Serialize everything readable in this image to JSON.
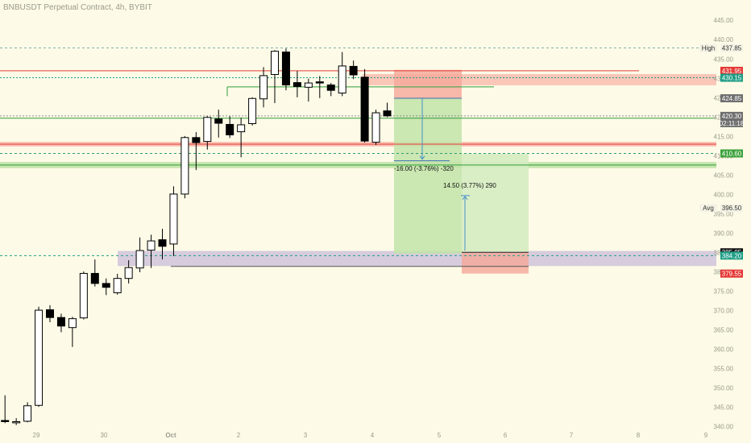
{
  "title": "BNBUSDT Perpetual Contract, 4h, BYBIT",
  "colors": {
    "background": "#fdfbe7",
    "up": "#ffffff",
    "down": "#000000",
    "red": "#e53935",
    "green": "#2e9c3a",
    "red_zone": "#f8b4a8",
    "green_zone": "#c2e3a8",
    "purple_zone": "#d3c6dc",
    "teal": "#1f9e86",
    "blue": "#4a90c8"
  },
  "chart_data": {
    "type": "candlestick",
    "ylim": [
      340,
      446
    ],
    "x_ticks": [
      "29",
      "30",
      "Oct",
      "2",
      "3",
      "4",
      "5",
      "6",
      "7",
      "8",
      "9"
    ],
    "y_ticks": [
      445,
      440,
      435,
      430,
      425,
      420,
      415,
      410,
      405,
      400,
      395,
      390,
      385,
      380,
      375,
      370,
      365,
      360,
      355,
      350,
      345,
      340
    ],
    "candles": [
      {
        "o": 341.6,
        "h": 348.1,
        "l": 340.9,
        "c": 341.3
      },
      {
        "o": 341.0,
        "h": 342.2,
        "l": 340.4,
        "c": 341.3
      },
      {
        "o": 341.4,
        "h": 346.3,
        "l": 341.1,
        "c": 345.4
      },
      {
        "o": 345.5,
        "h": 371.0,
        "l": 345.1,
        "c": 370.1
      },
      {
        "o": 370.2,
        "h": 371.4,
        "l": 367.0,
        "c": 368.2
      },
      {
        "o": 368.2,
        "h": 369.2,
        "l": 364.4,
        "c": 366.0
      },
      {
        "o": 365.6,
        "h": 368.4,
        "l": 360.6,
        "c": 367.9
      },
      {
        "o": 368.1,
        "h": 380.1,
        "l": 367.7,
        "c": 379.6
      },
      {
        "o": 379.6,
        "h": 383.2,
        "l": 376.2,
        "c": 377.0
      },
      {
        "o": 377.0,
        "h": 378.3,
        "l": 374.0,
        "c": 376.0
      },
      {
        "o": 374.6,
        "h": 379.5,
        "l": 374.1,
        "c": 378.3
      },
      {
        "o": 378.3,
        "h": 383.0,
        "l": 377.0,
        "c": 381.1
      },
      {
        "o": 381.0,
        "h": 388.9,
        "l": 379.9,
        "c": 385.5
      },
      {
        "o": 385.6,
        "h": 389.6,
        "l": 381.0,
        "c": 388.0
      },
      {
        "o": 388.3,
        "h": 391.1,
        "l": 383.2,
        "c": 386.6
      },
      {
        "o": 387.2,
        "h": 402.1,
        "l": 384.1,
        "c": 400.1
      },
      {
        "o": 400.1,
        "h": 415.1,
        "l": 399.0,
        "c": 414.7
      },
      {
        "o": 414.7,
        "h": 416.1,
        "l": 406.3,
        "c": 413.4
      },
      {
        "o": 413.7,
        "h": 420.2,
        "l": 411.6,
        "c": 419.9
      },
      {
        "o": 419.5,
        "h": 421.9,
        "l": 414.7,
        "c": 418.4
      },
      {
        "o": 418.1,
        "h": 420.2,
        "l": 414.6,
        "c": 415.4
      },
      {
        "o": 416.2,
        "h": 419.8,
        "l": 409.6,
        "c": 418.0
      },
      {
        "o": 418.3,
        "h": 425.1,
        "l": 417.8,
        "c": 424.8
      },
      {
        "o": 424.7,
        "h": 432.9,
        "l": 422.5,
        "c": 430.7
      },
      {
        "o": 431.0,
        "h": 437.3,
        "l": 423.6,
        "c": 437.0
      },
      {
        "o": 436.8,
        "h": 437.7,
        "l": 426.9,
        "c": 428.3
      },
      {
        "o": 428.9,
        "h": 431.9,
        "l": 425.1,
        "c": 427.9
      },
      {
        "o": 427.7,
        "h": 429.9,
        "l": 424.0,
        "c": 428.8
      },
      {
        "o": 429.1,
        "h": 430.6,
        "l": 424.9,
        "c": 428.8
      },
      {
        "o": 428.3,
        "h": 428.8,
        "l": 425.4,
        "c": 426.9
      },
      {
        "o": 426.2,
        "h": 436.8,
        "l": 425.4,
        "c": 433.2
      },
      {
        "o": 433.1,
        "h": 434.6,
        "l": 429.8,
        "c": 430.9
      },
      {
        "o": 430.3,
        "h": 432.4,
        "l": 413.4,
        "c": 413.8
      },
      {
        "o": 413.5,
        "h": 421.9,
        "l": 412.8,
        "c": 421.1
      },
      {
        "o": 421.6,
        "h": 423.7,
        "l": 420.0,
        "c": 420.3
      }
    ],
    "price_tags": [
      {
        "label": "High",
        "value": "437.85",
        "y": 437.85,
        "style": "label-plain"
      },
      {
        "value": "431.95",
        "y": 431.95,
        "style": "red"
      },
      {
        "value": "430.15",
        "y": 430.15,
        "style": "teal"
      },
      {
        "value": "424.85",
        "y": 424.85,
        "style": "gray"
      },
      {
        "value": "420.30",
        "extra": "02:11:18",
        "y": 420.3,
        "style": "gray"
      },
      {
        "value": "410.60",
        "y": 410.6,
        "style": "green"
      },
      {
        "label": "Avg",
        "value": "396.50",
        "y": 396.5,
        "style": "label-plain"
      },
      {
        "value": "385.05",
        "y": 385.05,
        "style": "black"
      },
      {
        "value": "384.20",
        "y": 384.2,
        "style": "teal"
      },
      {
        "value": "379.55",
        "y": 379.55,
        "style": "red"
      }
    ],
    "annotations": {
      "short_measure": "-16.00 (-3.76%) -320",
      "long_measure": "14.50 (3.77%) 290"
    }
  }
}
